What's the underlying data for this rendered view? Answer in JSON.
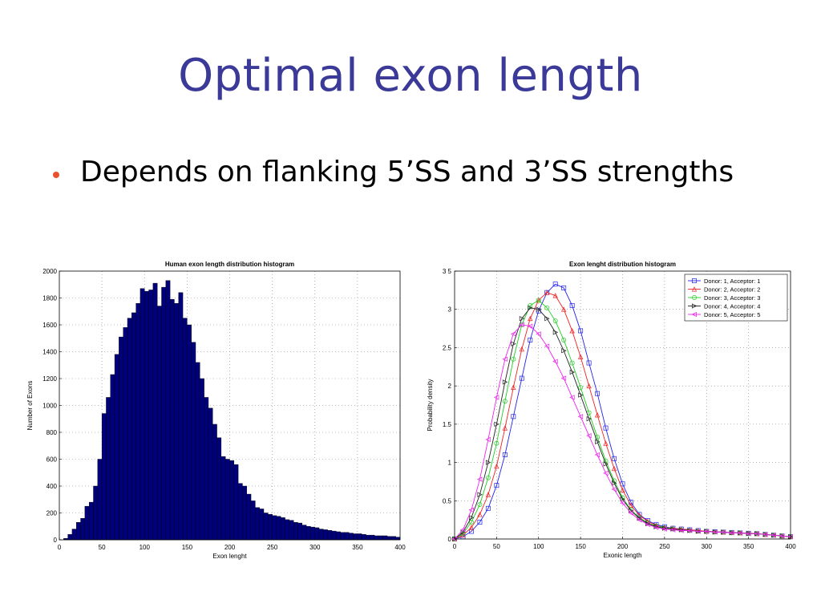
{
  "slide": {
    "title": "Optimal exon length",
    "bullet": "Depends on flanking 5’SS and 3’SS strengths"
  },
  "colors": {
    "title": "#3b3a98",
    "bullet": "#e8512b",
    "hist_bar": "#00007a"
  },
  "chart_data": [
    {
      "type": "bar",
      "title": "Human exon length distribution histogram",
      "xlabel": "Exon lenght",
      "ylabel": "Number of Exons",
      "xlim": [
        0,
        400
      ],
      "ylim": [
        0,
        2000
      ],
      "xticks": [
        0,
        50,
        100,
        150,
        200,
        250,
        300,
        350,
        400
      ],
      "yticks": [
        0,
        200,
        400,
        600,
        800,
        1000,
        1200,
        1400,
        1600,
        1800,
        2000
      ],
      "grid": true,
      "bin_width": 5,
      "bin_starts": [
        0,
        5,
        10,
        15,
        20,
        25,
        30,
        35,
        40,
        45,
        50,
        55,
        60,
        65,
        70,
        75,
        80,
        85,
        90,
        95,
        100,
        105,
        110,
        115,
        120,
        125,
        130,
        135,
        140,
        145,
        150,
        155,
        160,
        165,
        170,
        175,
        180,
        185,
        190,
        195,
        200,
        205,
        210,
        215,
        220,
        225,
        230,
        235,
        240,
        245,
        250,
        255,
        260,
        265,
        270,
        275,
        280,
        285,
        290,
        295,
        300,
        305,
        310,
        315,
        320,
        325,
        330,
        335,
        340,
        345,
        350,
        355,
        360,
        365,
        370,
        375,
        380,
        385,
        390,
        395
      ],
      "values": [
        0,
        10,
        40,
        80,
        130,
        160,
        250,
        280,
        400,
        600,
        940,
        1060,
        1230,
        1380,
        1510,
        1580,
        1650,
        1690,
        1760,
        1870,
        1850,
        1860,
        1910,
        1740,
        1880,
        1930,
        1790,
        1760,
        1840,
        1650,
        1600,
        1470,
        1320,
        1200,
        1060,
        980,
        860,
        760,
        620,
        600,
        590,
        560,
        420,
        400,
        340,
        290,
        240,
        230,
        200,
        190,
        180,
        175,
        165,
        150,
        145,
        130,
        125,
        110,
        100,
        95,
        90,
        80,
        75,
        70,
        65,
        60,
        55,
        55,
        50,
        45,
        45,
        40,
        35,
        35,
        30,
        30,
        30,
        25,
        25,
        20
      ]
    },
    {
      "type": "line",
      "title": "Exon lenght distribution histogram",
      "xlabel": "Exonic length",
      "ylabel": "Probability density",
      "xlim": [
        0,
        400
      ],
      "ylim": [
        0,
        3.5
      ],
      "xticks": [
        0,
        50,
        100,
        150,
        200,
        250,
        300,
        350,
        400
      ],
      "yticks": [
        0,
        0.5,
        1,
        1.5,
        2,
        2.5,
        3,
        3.5
      ],
      "ytick_labels": [
        "0",
        "0.5",
        "1",
        "1.5",
        "2",
        "2.5",
        "3",
        "3 5"
      ],
      "grid": true,
      "legend_position": "top-right",
      "x": [
        0,
        10,
        20,
        30,
        40,
        50,
        60,
        70,
        80,
        90,
        100,
        110,
        120,
        130,
        140,
        150,
        160,
        170,
        180,
        190,
        200,
        210,
        220,
        230,
        240,
        250,
        260,
        270,
        280,
        290,
        300,
        310,
        320,
        330,
        340,
        350,
        360,
        370,
        380,
        390,
        400
      ],
      "series": [
        {
          "name": "Donor: 1, Acceptor: 1",
          "color": "#2222ee",
          "marker": "square",
          "values": [
            0.0,
            0.03,
            0.1,
            0.22,
            0.4,
            0.7,
            1.1,
            1.6,
            2.1,
            2.6,
            2.98,
            3.22,
            3.33,
            3.28,
            3.05,
            2.72,
            2.3,
            1.9,
            1.45,
            1.05,
            0.72,
            0.48,
            0.32,
            0.24,
            0.19,
            0.16,
            0.14,
            0.13,
            0.12,
            0.11,
            0.1,
            0.095,
            0.09,
            0.085,
            0.08,
            0.075,
            0.07,
            0.06,
            0.05,
            0.04,
            0.03
          ]
        },
        {
          "name": "Donor: 2, Acceptor: 2",
          "color": "#ee2222",
          "marker": "triangle-up",
          "values": [
            0.0,
            0.05,
            0.15,
            0.32,
            0.58,
            0.95,
            1.45,
            1.98,
            2.48,
            2.88,
            3.12,
            3.22,
            3.18,
            3.0,
            2.72,
            2.38,
            2.0,
            1.62,
            1.25,
            0.92,
            0.64,
            0.44,
            0.31,
            0.23,
            0.18,
            0.15,
            0.14,
            0.13,
            0.12,
            0.11,
            0.1,
            0.095,
            0.09,
            0.085,
            0.08,
            0.075,
            0.07,
            0.06,
            0.05,
            0.04,
            0.03
          ]
        },
        {
          "name": "Donor: 3, Acceptor: 3",
          "color": "#22cc22",
          "marker": "circle",
          "values": [
            0.0,
            0.07,
            0.22,
            0.45,
            0.8,
            1.25,
            1.8,
            2.35,
            2.8,
            3.05,
            3.12,
            3.02,
            2.85,
            2.6,
            2.3,
            1.98,
            1.65,
            1.33,
            1.02,
            0.76,
            0.54,
            0.38,
            0.28,
            0.21,
            0.17,
            0.15,
            0.13,
            0.12,
            0.11,
            0.1,
            0.1,
            0.09,
            0.09,
            0.08,
            0.08,
            0.07,
            0.07,
            0.06,
            0.05,
            0.04,
            0.03
          ]
        },
        {
          "name": "Donor: 4, Acceptor: 4",
          "color": "#222222",
          "marker": "triangle-right",
          "values": [
            0.0,
            0.09,
            0.28,
            0.58,
            1.0,
            1.5,
            2.05,
            2.55,
            2.88,
            3.02,
            3.0,
            2.88,
            2.7,
            2.46,
            2.18,
            1.88,
            1.57,
            1.27,
            0.98,
            0.73,
            0.52,
            0.37,
            0.27,
            0.2,
            0.16,
            0.14,
            0.13,
            0.12,
            0.11,
            0.1,
            0.1,
            0.09,
            0.09,
            0.08,
            0.08,
            0.07,
            0.07,
            0.06,
            0.05,
            0.04,
            0.03
          ]
        },
        {
          "name": "Donor: 5, Acceptor: 5",
          "color": "#ee22ee",
          "marker": "triangle-left",
          "values": [
            0.0,
            0.12,
            0.38,
            0.78,
            1.3,
            1.85,
            2.35,
            2.68,
            2.8,
            2.78,
            2.68,
            2.52,
            2.32,
            2.1,
            1.85,
            1.6,
            1.35,
            1.1,
            0.86,
            0.65,
            0.47,
            0.34,
            0.25,
            0.19,
            0.15,
            0.13,
            0.12,
            0.11,
            0.11,
            0.1,
            0.1,
            0.09,
            0.09,
            0.08,
            0.08,
            0.07,
            0.07,
            0.06,
            0.05,
            0.04,
            0.03
          ]
        }
      ]
    }
  ]
}
